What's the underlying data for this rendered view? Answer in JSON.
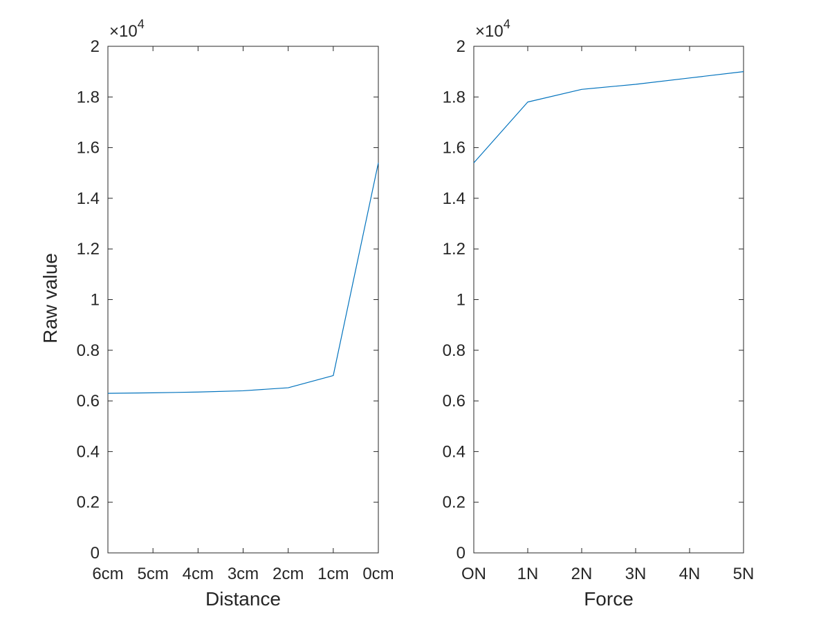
{
  "chart_data": [
    {
      "type": "line",
      "xlabel": "Distance",
      "ylabel": "Raw value",
      "categories": [
        "6cm",
        "5cm",
        "4cm",
        "3cm",
        "2cm",
        "1cm",
        "0cm"
      ],
      "values": [
        6300,
        6320,
        6350,
        6400,
        6520,
        7000,
        15400
      ],
      "ylim": [
        0,
        20000
      ],
      "yticks": [
        "0",
        "0.2",
        "0.4",
        "0.6",
        "0.8",
        "1",
        "1.2",
        "1.4",
        "1.6",
        "1.8",
        "2"
      ],
      "ytick_values": [
        0,
        2000,
        4000,
        6000,
        8000,
        10000,
        12000,
        14000,
        16000,
        18000,
        20000
      ],
      "exponent_base": "×10",
      "exponent_power": "4",
      "grid": false,
      "line_color": "#0072bd"
    },
    {
      "type": "line",
      "xlabel": "Force",
      "ylabel": "",
      "categories": [
        "ON",
        "1N",
        "2N",
        "3N",
        "4N",
        "5N"
      ],
      "values": [
        15400,
        17800,
        18300,
        18500,
        18750,
        19000
      ],
      "ylim": [
        0,
        20000
      ],
      "yticks": [
        "0",
        "0.2",
        "0.4",
        "0.6",
        "0.8",
        "1",
        "1.2",
        "1.4",
        "1.6",
        "1.8",
        "2"
      ],
      "ytick_values": [
        0,
        2000,
        4000,
        6000,
        8000,
        10000,
        12000,
        14000,
        16000,
        18000,
        20000
      ],
      "exponent_base": "×10",
      "exponent_power": "4",
      "grid": false,
      "line_color": "#0072bd"
    }
  ]
}
